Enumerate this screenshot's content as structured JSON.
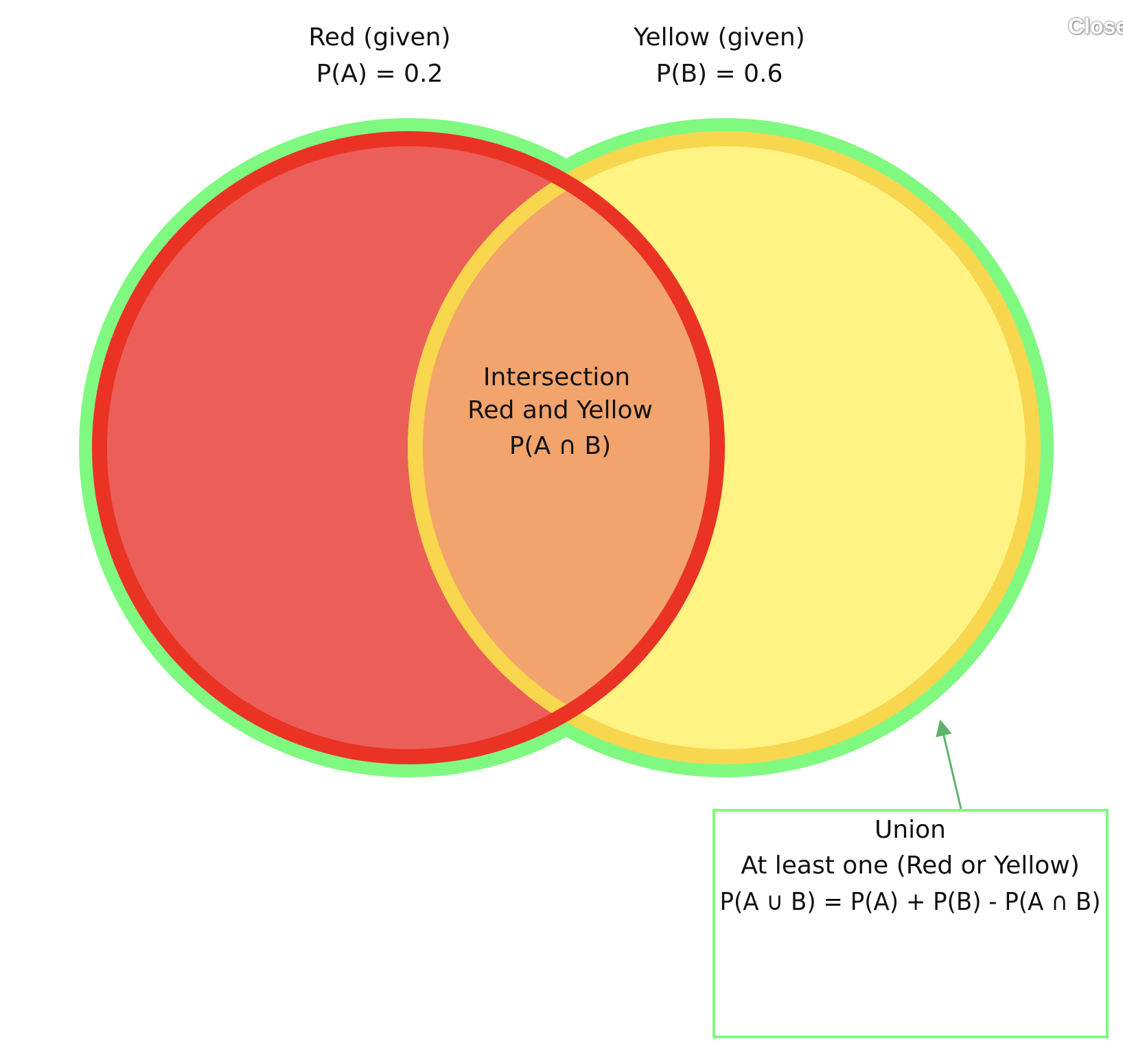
{
  "close_label": "Close",
  "set_a": {
    "name": "Red (given)",
    "probability": "P(A) = 0.2",
    "fill": "#EC5F59",
    "stroke": "#EA3324"
  },
  "set_b": {
    "name": "Yellow (given)",
    "probability": "P(B) = 0.6",
    "fill": "#FFF483",
    "stroke": "#F8D64E"
  },
  "intersection": {
    "line1": "Intersection",
    "line2": "Red and Yellow",
    "line3": "P(A ∩ B)",
    "fill": "#F2A46C"
  },
  "union": {
    "line1": "Union",
    "line2": "At least one (Red or Yellow)",
    "line3": "P(A ∪ B) = P(A) + P(B) - P(A ∩ B)",
    "color": "#80F981",
    "arrow_color": "#5FB36A"
  }
}
